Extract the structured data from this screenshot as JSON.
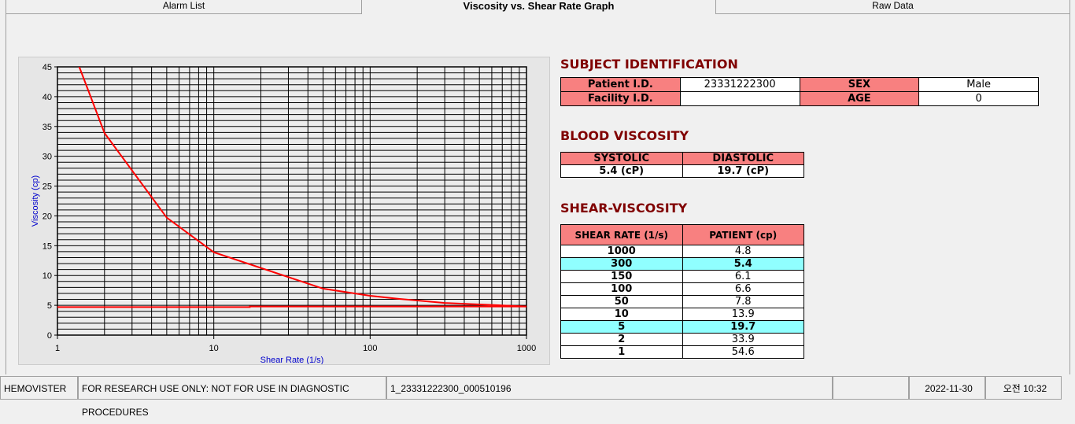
{
  "tabs": [
    {
      "label": "Alarm List"
    },
    {
      "label": "Viscosity vs. Shear Rate Graph"
    },
    {
      "label": "Raw Data"
    }
  ],
  "subject": {
    "title": "SUBJECT IDENTIFICATION",
    "patient_id_label": "Patient I.D.",
    "patient_id": "23331222300",
    "sex_label": "SEX",
    "sex": "Male",
    "facility_label": "Facility I.D.",
    "facility": "",
    "age_label": "AGE",
    "age": "0"
  },
  "blood": {
    "title": "BLOOD VISCOSITY",
    "systolic_label": "SYSTOLIC",
    "diastolic_label": "DIASTOLIC",
    "systolic": "5.4 (cP)",
    "diastolic": "19.7 (cP)"
  },
  "shear": {
    "title": "SHEAR-VISCOSITY",
    "col1": "SHEAR RATE (1/s)",
    "col2": "PATIENT (cp)",
    "rows": [
      {
        "rate": "1000",
        "v": "4.8",
        "hl": false
      },
      {
        "rate": "300",
        "v": "5.4",
        "hl": true
      },
      {
        "rate": "150",
        "v": "6.1",
        "hl": false
      },
      {
        "rate": "100",
        "v": "6.6",
        "hl": false
      },
      {
        "rate": "50",
        "v": "7.8",
        "hl": false
      },
      {
        "rate": "10",
        "v": "13.9",
        "hl": false
      },
      {
        "rate": "5",
        "v": "19.7",
        "hl": true
      },
      {
        "rate": "2",
        "v": "33.9",
        "hl": false
      },
      {
        "rate": "1",
        "v": "54.6",
        "hl": false
      }
    ]
  },
  "colors": {
    "header": "#f88080",
    "highlight": "#90ffff",
    "title": "#800000",
    "curve": "#ff0000",
    "axis_label": "#0000cc"
  },
  "chart_data": {
    "type": "line",
    "xlabel": "Shear Rate (1/s)",
    "ylabel": "Viscosity (cp)",
    "xscale": "log",
    "xlim": [
      1,
      1000
    ],
    "ylim": [
      0,
      45
    ],
    "grid": true,
    "xticks": [
      "1",
      "10",
      "100",
      "1000"
    ],
    "yticks": [
      "0",
      "5",
      "10",
      "15",
      "20",
      "25",
      "30",
      "35",
      "40",
      "45"
    ],
    "series": [
      {
        "x": [
          1,
          2,
          5,
          10,
          50,
          100,
          150,
          300,
          1000
        ],
        "y": [
          54.6,
          33.9,
          19.7,
          13.9,
          7.8,
          6.6,
          6.1,
          5.4,
          4.8
        ],
        "color": "#ff0000"
      },
      {
        "x": [
          1,
          17,
          17,
          1000
        ],
        "y": [
          4.7,
          4.7,
          4.8,
          4.8
        ],
        "color": "#ff0000"
      }
    ]
  },
  "status": {
    "app": "HEMOVISTER",
    "notice": "FOR RESEARCH USE ONLY: NOT FOR USE IN DIAGNOSTIC PROCEDURES",
    "file": "1_23331222300_000510196",
    "extra": "",
    "date": "2022-11-30",
    "time": "오전 10:32"
  }
}
